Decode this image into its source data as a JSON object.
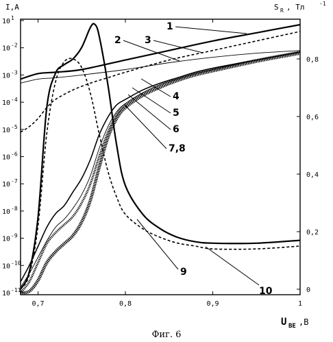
{
  "chart_data": {
    "type": "line",
    "caption": "Фиг. 6",
    "left_axis_label": "I,A",
    "right_axis_label": "S",
    "right_axis_label_sub": "R",
    "right_axis_unit": ", Тл",
    "right_axis_unit_sup": "-1",
    "x_axis_label": "U",
    "x_axis_label_sub": "BE",
    "x_axis_unit": ",B",
    "xlim": [
      0.68,
      1.0
    ],
    "x_ticks": [
      "0,7",
      "0,8",
      "0,9",
      "1"
    ],
    "x_tick_values": [
      0.7,
      0.8,
      0.9,
      1.0
    ],
    "left_log_range": [
      -11,
      -1
    ],
    "left_tick_mantissa": "10",
    "left_tick_exponents": [
      "1",
      "-2",
      "-3",
      "-4",
      "-5",
      "-6",
      "-7",
      "-8",
      "-9",
      "-10",
      "-11"
    ],
    "left_tick_values": [
      -1,
      -2,
      -3,
      -4,
      -5,
      -6,
      -7,
      -8,
      -9,
      -10,
      -11
    ],
    "right_lim": [
      -0.04,
      0.92
    ],
    "right_ticks": [
      "0,8",
      "0,6",
      "0,4",
      "0,2",
      "0"
    ],
    "right_tick_values": [
      0.8,
      0.6,
      0.4,
      0.2,
      0
    ],
    "curve_labels": [
      "1",
      "2",
      "3",
      "4",
      "5",
      "6",
      "7,8",
      "9",
      "10"
    ],
    "series": [
      {
        "name": "1",
        "axis": "left",
        "style": "thick-solid",
        "x": [
          0.68,
          0.7,
          0.72,
          0.75,
          0.8,
          0.85,
          0.9,
          0.95,
          1.0
        ],
        "y": [
          -3.15,
          -2.95,
          -2.9,
          -2.8,
          -2.45,
          -2.1,
          -1.75,
          -1.45,
          -1.15
        ]
      },
      {
        "name": "2",
        "axis": "left",
        "style": "thin-solid",
        "x": [
          0.68,
          0.7,
          0.72,
          0.75,
          0.8,
          0.85,
          0.9,
          0.95,
          1.0
        ],
        "y": [
          -3.3,
          -3.15,
          -3.1,
          -3.0,
          -2.8,
          -2.55,
          -2.35,
          -2.2,
          -2.1
        ]
      },
      {
        "name": "3",
        "axis": "left",
        "style": "dashed",
        "x": [
          0.68,
          0.69,
          0.7,
          0.71,
          0.72,
          0.74,
          0.76,
          0.78,
          0.8,
          0.85,
          0.9,
          0.95,
          1.0
        ],
        "y": [
          -5.1,
          -4.9,
          -4.6,
          -4.2,
          -3.9,
          -3.55,
          -3.3,
          -3.1,
          -2.9,
          -2.45,
          -2.1,
          -1.75,
          -1.4
        ]
      },
      {
        "name": "4",
        "axis": "left",
        "style": "medium-solid",
        "x": [
          0.68,
          0.69,
          0.7,
          0.71,
          0.72,
          0.73,
          0.74,
          0.75,
          0.76,
          0.77,
          0.78,
          0.79,
          0.8,
          0.82,
          0.84,
          0.86,
          0.88,
          0.9,
          0.95,
          1.0
        ],
        "y": [
          -10.6,
          -10.0,
          -9.3,
          -8.6,
          -8.1,
          -7.8,
          -7.3,
          -6.8,
          -6.1,
          -5.2,
          -4.55,
          -4.1,
          -3.9,
          -3.55,
          -3.3,
          -3.1,
          -2.9,
          -2.75,
          -2.45,
          -2.15
        ]
      },
      {
        "name": "5",
        "axis": "left",
        "style": "thin-solid",
        "x": [
          0.68,
          0.69,
          0.7,
          0.71,
          0.72,
          0.73,
          0.74,
          0.75,
          0.76,
          0.77,
          0.78,
          0.79,
          0.8,
          0.82,
          0.84,
          0.86,
          0.88,
          0.9,
          0.95,
          1.0
        ],
        "y": [
          -10.8,
          -10.3,
          -9.7,
          -9.1,
          -8.6,
          -8.3,
          -7.9,
          -7.4,
          -6.7,
          -5.7,
          -4.9,
          -4.35,
          -4.05,
          -3.65,
          -3.35,
          -3.15,
          -2.95,
          -2.8,
          -2.45,
          -2.15
        ]
      },
      {
        "name": "6",
        "axis": "left",
        "style": "marked",
        "x": [
          0.68,
          0.69,
          0.7,
          0.71,
          0.72,
          0.73,
          0.74,
          0.75,
          0.76,
          0.77,
          0.78,
          0.79,
          0.8,
          0.82,
          0.84,
          0.86,
          0.88,
          0.9,
          0.95,
          1.0
        ],
        "y": [
          -11.0,
          -10.6,
          -9.9,
          -9.2,
          -8.8,
          -8.5,
          -8.2,
          -7.7,
          -7.0,
          -6.0,
          -5.1,
          -4.45,
          -4.1,
          -3.7,
          -3.4,
          -3.15,
          -2.95,
          -2.8,
          -2.45,
          -2.15
        ]
      },
      {
        "name": "7,8",
        "axis": "left",
        "style": "bold-marked",
        "x": [
          0.68,
          0.69,
          0.7,
          0.71,
          0.72,
          0.73,
          0.74,
          0.75,
          0.76,
          0.77,
          0.78,
          0.79,
          0.8,
          0.82,
          0.84,
          0.86,
          0.88,
          0.9,
          0.95,
          1.0
        ],
        "y": [
          -11.0,
          -10.95,
          -10.55,
          -9.9,
          -9.5,
          -9.2,
          -8.9,
          -8.4,
          -7.6,
          -6.4,
          -5.3,
          -4.6,
          -4.2,
          -3.75,
          -3.45,
          -3.2,
          -3.0,
          -2.85,
          -2.5,
          -2.2
        ]
      },
      {
        "name": "9",
        "axis": "right",
        "style": "dashed",
        "x": [
          0.68,
          0.69,
          0.7,
          0.71,
          0.72,
          0.73,
          0.74,
          0.75,
          0.76,
          0.77,
          0.78,
          0.79,
          0.8,
          0.82,
          0.84,
          0.86,
          0.88,
          0.9,
          0.95,
          1.0
        ],
        "y": [
          0.0,
          0.05,
          0.22,
          0.54,
          0.72,
          0.79,
          0.8,
          0.77,
          0.68,
          0.54,
          0.41,
          0.32,
          0.26,
          0.21,
          0.18,
          0.16,
          0.15,
          0.14,
          0.14,
          0.15
        ]
      },
      {
        "name": "10",
        "axis": "right",
        "style": "thick-solid",
        "x": [
          0.68,
          0.69,
          0.7,
          0.71,
          0.72,
          0.73,
          0.74,
          0.75,
          0.76,
          0.765,
          0.77,
          0.78,
          0.79,
          0.8,
          0.82,
          0.84,
          0.86,
          0.88,
          0.9,
          0.95,
          1.0
        ],
        "y": [
          0.0,
          0.06,
          0.25,
          0.63,
          0.75,
          0.78,
          0.8,
          0.84,
          0.91,
          0.92,
          0.88,
          0.71,
          0.5,
          0.36,
          0.26,
          0.21,
          0.18,
          0.165,
          0.16,
          0.16,
          0.17
        ]
      }
    ],
    "grid": false,
    "legend": "none"
  }
}
